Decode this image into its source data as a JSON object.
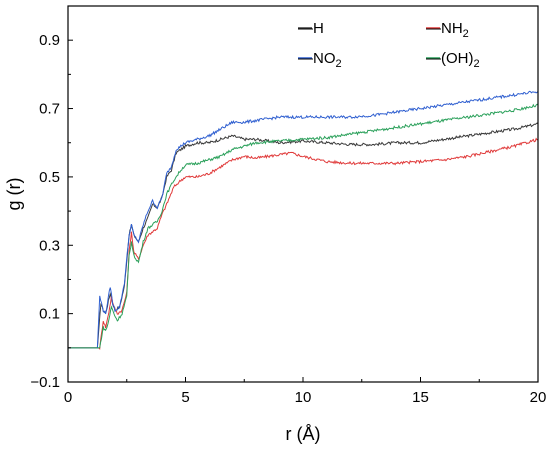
{
  "chart_data": {
    "type": "line",
    "title": "",
    "xlabel": "r (Å)",
    "ylabel": "g (r)",
    "xlim": [
      0,
      20
    ],
    "ylim": [
      -0.1,
      1.0
    ],
    "xticks": [
      0,
      5,
      10,
      15,
      20
    ],
    "xtick_labels": [
      "0",
      "5",
      "10",
      "15",
      "20"
    ],
    "yticks": [
      -0.1,
      0.1,
      0.3,
      0.5,
      0.7,
      0.9
    ],
    "ytick_labels": [
      "−0.1",
      "0.1",
      "0.3",
      "0.5",
      "0.7",
      "0.9"
    ],
    "grid": false,
    "legend_position": "top-right",
    "series": [
      {
        "name": "—H",
        "label_main": "—H",
        "label_sub": "",
        "label_tail": "",
        "color": "#3a3a3a",
        "x": [
          0,
          1.2,
          1.25,
          1.4,
          1.5,
          1.6,
          1.8,
          1.9,
          2.0,
          2.2,
          2.4,
          2.6,
          2.7,
          2.8,
          3.0,
          3.2,
          3.4,
          3.6,
          3.8,
          4.0,
          4.2,
          4.4,
          4.6,
          5.0,
          5.5,
          6.0,
          6.5,
          7.0,
          7.5,
          8.0,
          9.0,
          10.0,
          11.0,
          12.0,
          13.0,
          14.0,
          15.0,
          16.0,
          17.0,
          18.0,
          19.0,
          20.0
        ],
        "y": [
          0.0,
          0.0,
          0.0,
          0.13,
          0.11,
          0.1,
          0.16,
          0.13,
          0.11,
          0.12,
          0.18,
          0.33,
          0.36,
          0.33,
          0.31,
          0.35,
          0.38,
          0.42,
          0.41,
          0.44,
          0.5,
          0.52,
          0.57,
          0.59,
          0.6,
          0.6,
          0.61,
          0.62,
          0.61,
          0.61,
          0.6,
          0.605,
          0.6,
          0.595,
          0.595,
          0.6,
          0.6,
          0.61,
          0.62,
          0.63,
          0.64,
          0.655
        ]
      },
      {
        "name": "—NH2",
        "label_main": "—NH",
        "label_sub": "2",
        "label_tail": "",
        "color": "#e03a3a",
        "x": [
          0,
          1.3,
          1.35,
          1.5,
          1.6,
          1.7,
          1.85,
          1.95,
          2.1,
          2.3,
          2.5,
          2.6,
          2.7,
          2.8,
          3.0,
          3.2,
          3.4,
          3.6,
          3.8,
          4.0,
          4.2,
          4.5,
          4.8,
          5.0,
          5.5,
          6.0,
          6.5,
          7.0,
          7.5,
          8.0,
          9.0,
          9.5,
          10.0,
          11.0,
          12.0,
          13.0,
          14.0,
          15.0,
          16.0,
          17.0,
          18.0,
          19.0,
          20.0
        ],
        "y": [
          0.0,
          0.0,
          0.0,
          0.08,
          0.06,
          0.09,
          0.15,
          0.12,
          0.1,
          0.11,
          0.16,
          0.28,
          0.34,
          0.28,
          0.26,
          0.3,
          0.33,
          0.34,
          0.35,
          0.39,
          0.42,
          0.47,
          0.49,
          0.5,
          0.5,
          0.51,
          0.53,
          0.55,
          0.56,
          0.555,
          0.565,
          0.57,
          0.56,
          0.545,
          0.54,
          0.54,
          0.54,
          0.545,
          0.55,
          0.56,
          0.575,
          0.59,
          0.61
        ]
      },
      {
        "name": "—NO2",
        "label_main": "—NO",
        "label_sub": "2",
        "label_tail": "",
        "color": "#2f5fd0",
        "x": [
          0,
          1.2,
          1.25,
          1.35,
          1.5,
          1.6,
          1.8,
          1.9,
          2.0,
          2.2,
          2.4,
          2.6,
          2.7,
          2.8,
          3.0,
          3.2,
          3.4,
          3.6,
          3.8,
          4.0,
          4.2,
          4.4,
          4.6,
          5.0,
          5.5,
          6.0,
          6.5,
          7.0,
          7.5,
          8.0,
          9.0,
          10.0,
          11.0,
          12.0,
          13.0,
          14.0,
          15.0,
          16.0,
          17.0,
          18.0,
          19.0,
          20.0
        ],
        "y": [
          0.0,
          0.0,
          0.0,
          0.15,
          0.11,
          0.1,
          0.18,
          0.13,
          0.11,
          0.12,
          0.19,
          0.33,
          0.36,
          0.33,
          0.31,
          0.36,
          0.4,
          0.43,
          0.41,
          0.44,
          0.51,
          0.53,
          0.58,
          0.6,
          0.61,
          0.62,
          0.64,
          0.66,
          0.66,
          0.665,
          0.675,
          0.675,
          0.675,
          0.675,
          0.68,
          0.69,
          0.7,
          0.71,
          0.72,
          0.73,
          0.74,
          0.75
        ]
      },
      {
        "name": "—(OH)2",
        "label_main": "—(OH)",
        "label_sub": "2",
        "label_tail": "",
        "color": "#2aa05a",
        "x": [
          0,
          1.3,
          1.35,
          1.5,
          1.6,
          1.7,
          1.85,
          1.95,
          2.1,
          2.3,
          2.5,
          2.6,
          2.7,
          2.8,
          3.0,
          3.2,
          3.4,
          3.6,
          3.8,
          4.0,
          4.2,
          4.5,
          4.8,
          5.0,
          5.5,
          6.0,
          6.5,
          7.0,
          7.5,
          8.0,
          9.0,
          10.0,
          11.0,
          12.0,
          13.0,
          14.0,
          15.0,
          16.0,
          17.0,
          18.0,
          19.0,
          20.0
        ],
        "y": [
          0.0,
          0.0,
          0.0,
          0.06,
          0.05,
          0.07,
          0.12,
          0.1,
          0.08,
          0.1,
          0.15,
          0.27,
          0.31,
          0.27,
          0.25,
          0.31,
          0.35,
          0.36,
          0.37,
          0.4,
          0.45,
          0.49,
          0.52,
          0.535,
          0.54,
          0.55,
          0.56,
          0.58,
          0.59,
          0.6,
          0.605,
          0.61,
          0.615,
          0.625,
          0.635,
          0.645,
          0.655,
          0.665,
          0.675,
          0.685,
          0.695,
          0.71
        ]
      }
    ]
  }
}
